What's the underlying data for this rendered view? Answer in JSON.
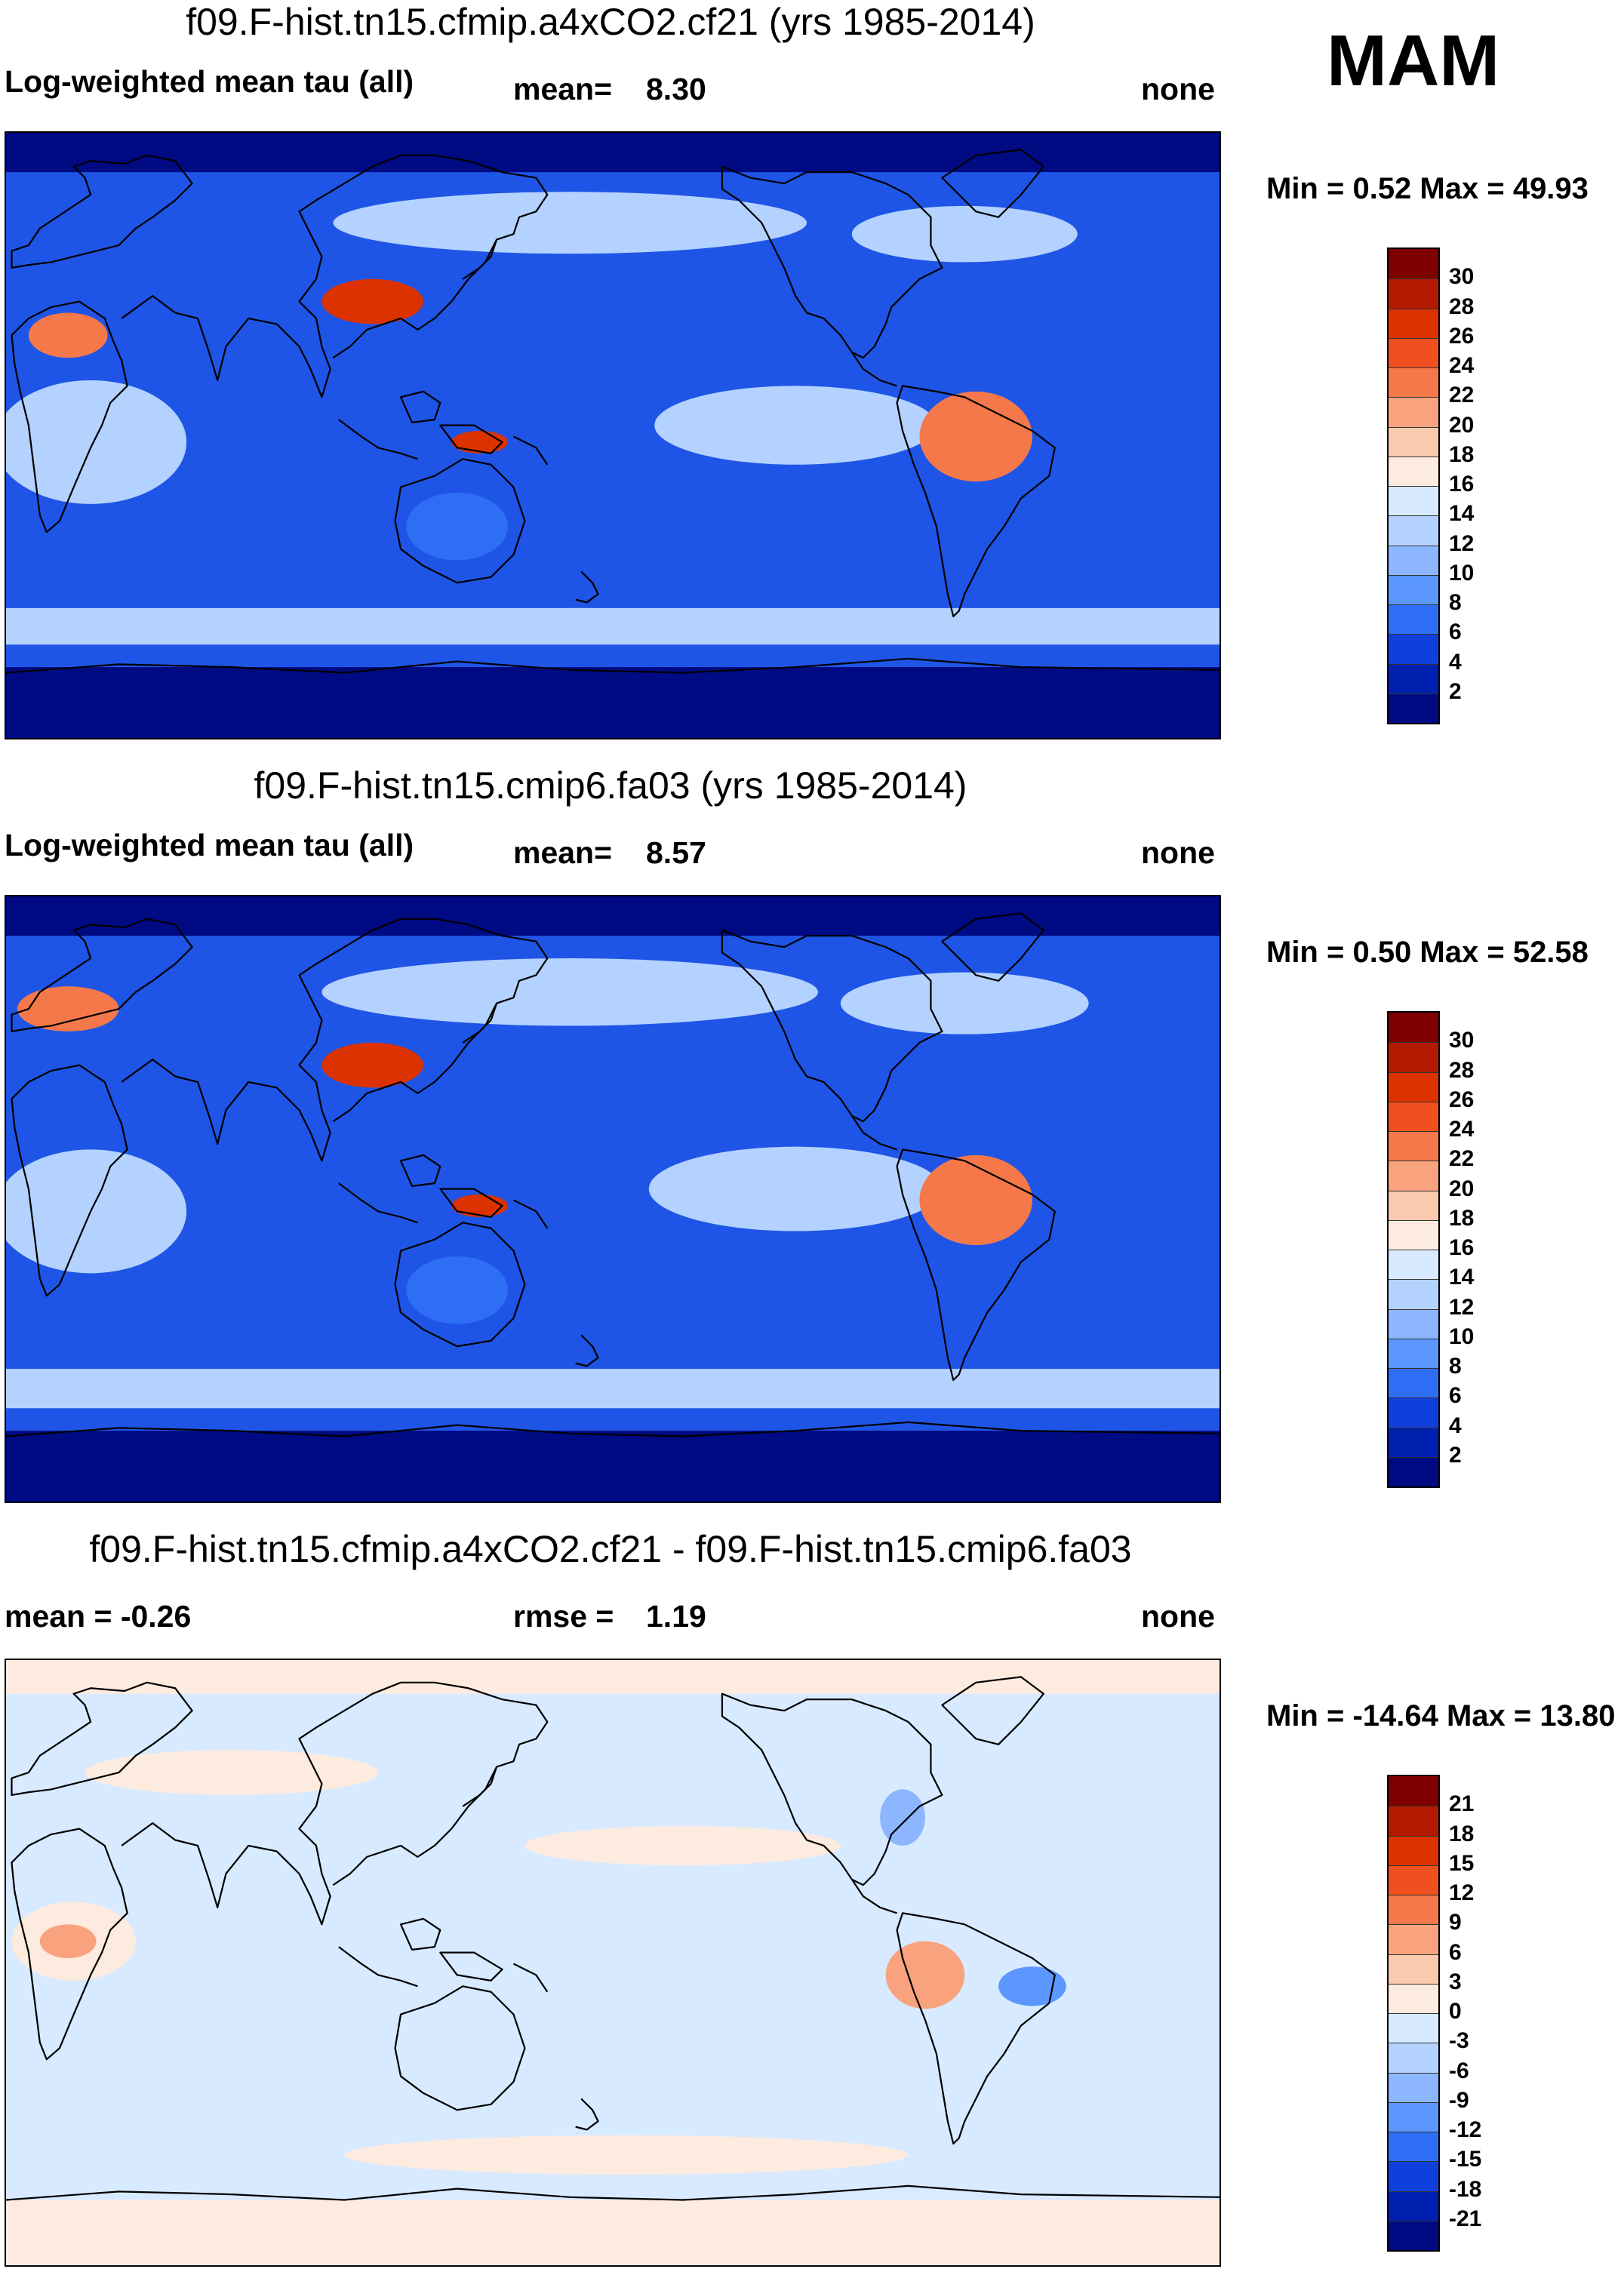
{
  "season": "MAM",
  "panels": [
    {
      "id": "panel1",
      "title": "f09.F-hist.tn15.cfmip.a4xCO2.cf21 (yrs 1985-2014)",
      "left_label": "Log-weighted mean tau (all)",
      "center_label": "mean=",
      "center_value": "8.30",
      "right_label": "none",
      "minmax": "Min =   0.52 Max =  49.93",
      "colorbar": {
        "labels": [
          "30",
          "28",
          "26",
          "24",
          "22",
          "20",
          "18",
          "16",
          "14",
          "12",
          "10",
          "8",
          "6",
          "4",
          "2"
        ],
        "colors": [
          "#7f0000",
          "#b21a00",
          "#dc3200",
          "#f05020",
          "#f5784a",
          "#f8a37e",
          "#fbcaae",
          "#fdebdf",
          "#d8eaff",
          "#b4d2ff",
          "#8cb6ff",
          "#5c96ff",
          "#2e6ef5",
          "#1040dc",
          "#0020b0",
          "#000a82"
        ]
      },
      "field_colors": {
        "ocean": "#1f55e6",
        "land": "#2e6ef5",
        "storm": "#b4d2ff",
        "cold": "#000a82",
        "hot": "#dc3200",
        "warm": "#f5784a"
      }
    },
    {
      "id": "panel2",
      "title": "f09.F-hist.tn15.cmip6.fa03 (yrs 1985-2014)",
      "left_label": "Log-weighted mean tau (all)",
      "center_label": "mean=",
      "center_value": "8.57",
      "right_label": "none",
      "minmax": "Min =   0.50 Max =  52.58",
      "colorbar": {
        "labels": [
          "30",
          "28",
          "26",
          "24",
          "22",
          "20",
          "18",
          "16",
          "14",
          "12",
          "10",
          "8",
          "6",
          "4",
          "2"
        ],
        "colors": [
          "#7f0000",
          "#b21a00",
          "#dc3200",
          "#f05020",
          "#f5784a",
          "#f8a37e",
          "#fbcaae",
          "#fdebdf",
          "#d8eaff",
          "#b4d2ff",
          "#8cb6ff",
          "#5c96ff",
          "#2e6ef5",
          "#1040dc",
          "#0020b0",
          "#000a82"
        ]
      },
      "field_colors": {
        "ocean": "#1f55e6",
        "land": "#2e6ef5",
        "storm": "#b4d2ff",
        "cold": "#000a82",
        "hot": "#dc3200",
        "warm": "#f5784a"
      }
    },
    {
      "id": "panel3",
      "title": "f09.F-hist.tn15.cfmip.a4xCO2.cf21 - f09.F-hist.tn15.cmip6.fa03",
      "left_label": "mean =  -0.26",
      "center_label": "rmse =",
      "center_value": "1.19",
      "right_label": "none",
      "minmax": "Min = -14.64 Max =  13.80",
      "colorbar": {
        "labels": [
          "21",
          "18",
          "15",
          "12",
          "9",
          "6",
          "3",
          "0",
          "-3",
          "-6",
          "-9",
          "-12",
          "-15",
          "-18",
          "-21"
        ],
        "colors": [
          "#7f0000",
          "#b21a00",
          "#dc3200",
          "#f05020",
          "#f5784a",
          "#f8a37e",
          "#fbcaae",
          "#fdebdf",
          "#d8eaff",
          "#b4d2ff",
          "#8cb6ff",
          "#5c96ff",
          "#2e6ef5",
          "#1040dc",
          "#0020b0",
          "#000a82"
        ]
      },
      "field_colors": {
        "ocean": "#d8eaff",
        "land": "#d8eaff",
        "storm": "#fdebdf",
        "cold": "#fdebdf",
        "hot": "#f8a37e",
        "warm": "#fdebdf"
      }
    }
  ]
}
